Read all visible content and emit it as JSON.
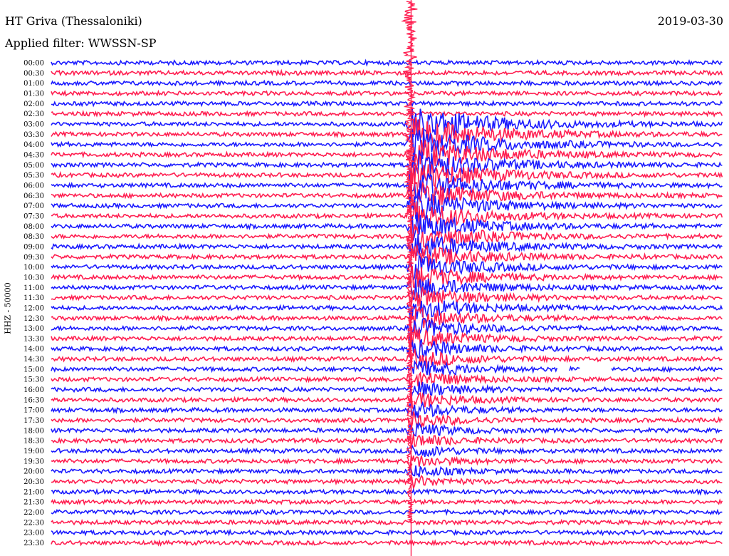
{
  "station": "HT Griva (Thessaloniki)",
  "filter_label": "Applied filter: WWSSN-SP",
  "date": "2019-03-30",
  "channel_label": "HHZ - 50000",
  "chart_data": {
    "type": "helicorder",
    "title": "HT Griva (Thessaloniki)",
    "subtitle": "Applied filter: WWSSN-SP",
    "date": "2019-03-30",
    "ylabel": "HHZ - 50000",
    "row_interval_minutes": 30,
    "row_labels": [
      "00:00",
      "00:30",
      "01:00",
      "01:30",
      "02:00",
      "02:30",
      "03:00",
      "03:30",
      "04:00",
      "04:30",
      "05:00",
      "05:30",
      "06:00",
      "06:30",
      "07:00",
      "07:30",
      "08:00",
      "08:30",
      "09:00",
      "09:30",
      "10:00",
      "10:30",
      "11:00",
      "11:30",
      "12:00",
      "12:30",
      "13:00",
      "13:30",
      "14:00",
      "14:30",
      "15:00",
      "15:30",
      "16:00",
      "16:30",
      "17:00",
      "17:30",
      "18:00",
      "18:30",
      "19:00",
      "19:30",
      "20:00",
      "20:30",
      "21:00",
      "21:30",
      "22:00",
      "22:30",
      "23:00",
      "23:30"
    ],
    "colors": [
      "#1a1aff",
      "#ff1e50"
    ],
    "event": {
      "row_start_label": "03:00",
      "row_end_label": "20:30",
      "minute_in_row": 16.0,
      "description": "large teleseismic arrival with long coda"
    },
    "gaps": [
      {
        "row_label": "15:00",
        "minute_start": 22.6,
        "minute_end": 23.1
      },
      {
        "row_label": "15:00",
        "minute_start": 23.6,
        "minute_end": 25.0
      }
    ]
  }
}
